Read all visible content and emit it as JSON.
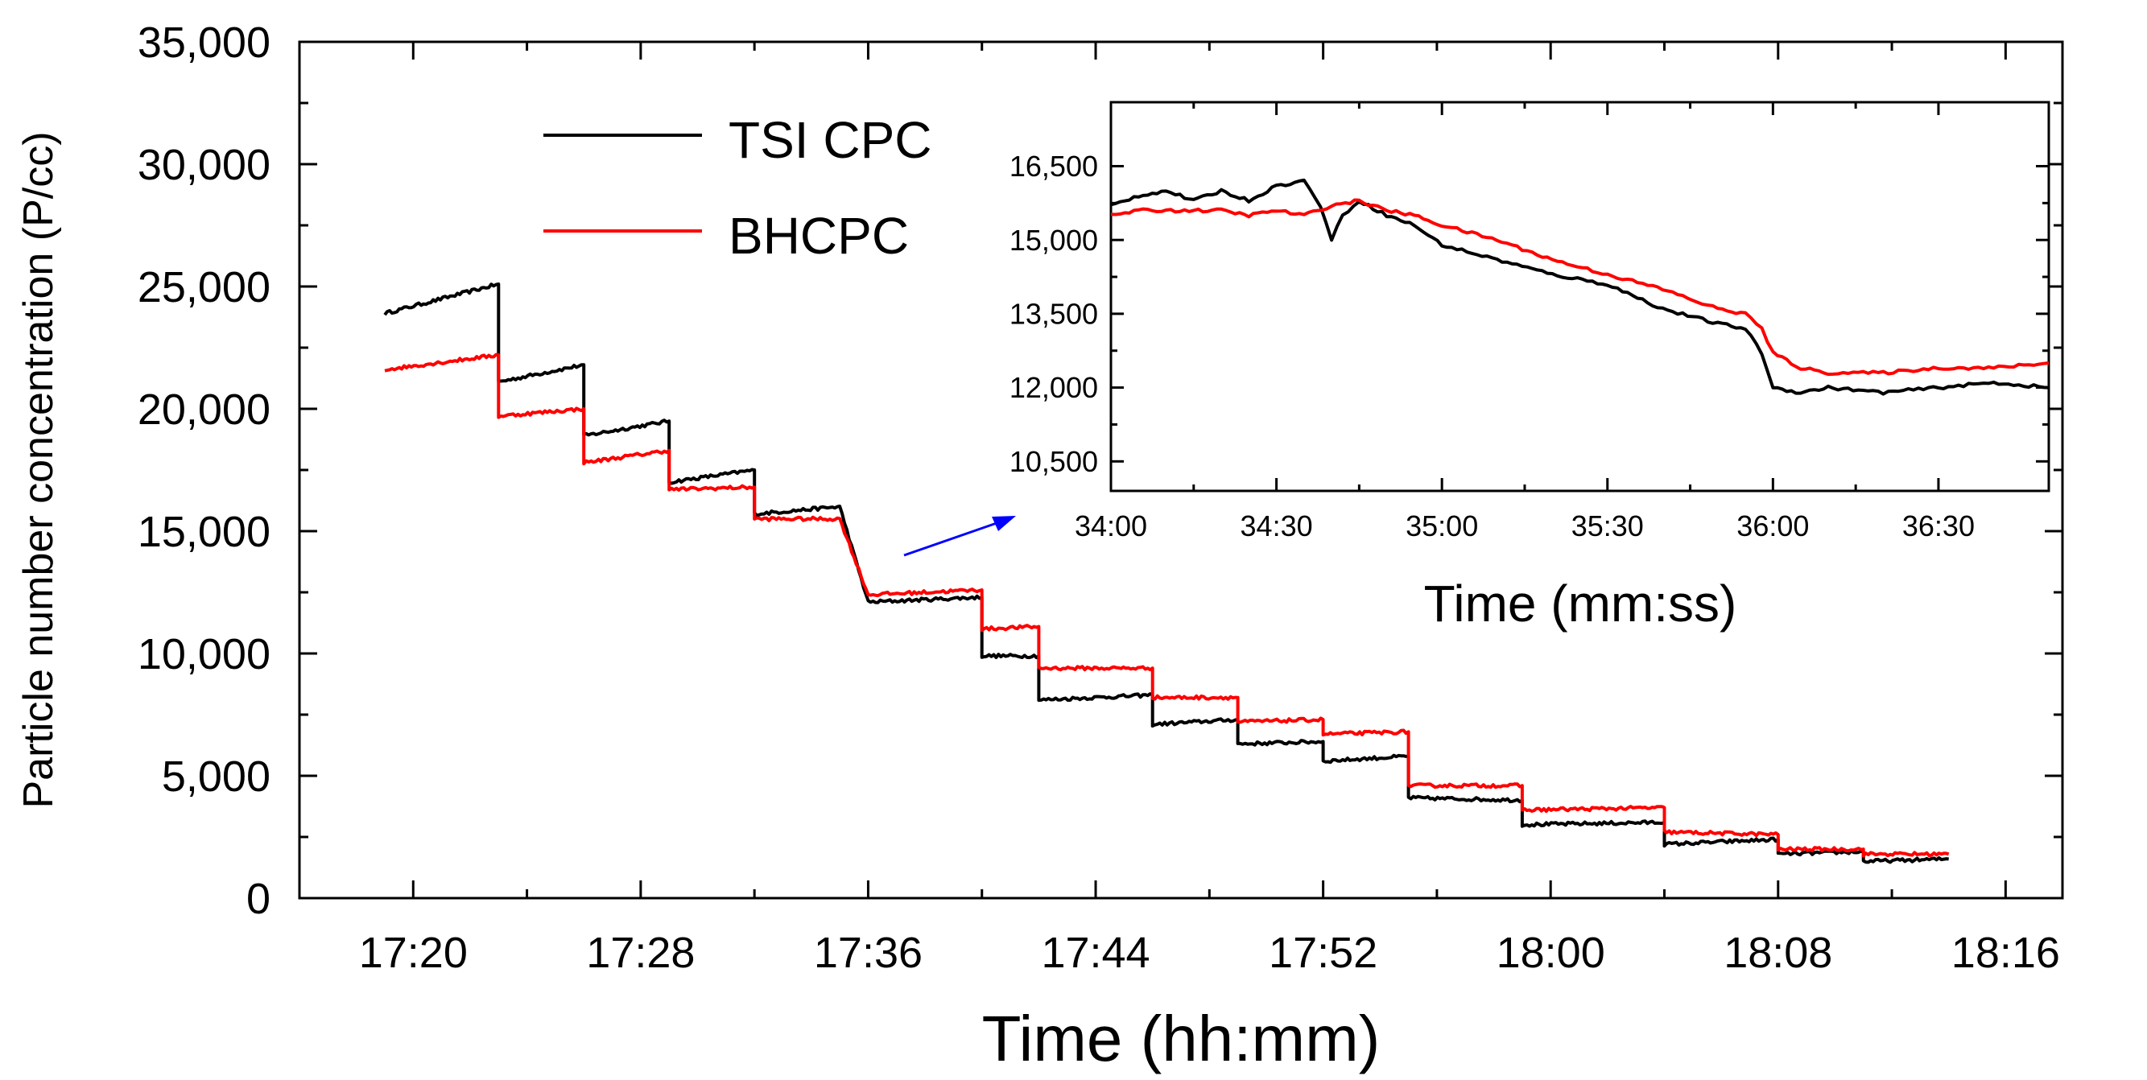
{
  "chart_data": [
    {
      "type": "line",
      "title": "",
      "xlabel": "Time (hh:mm)",
      "ylabel": "Particle number concentration (P/cc)",
      "xlim": [
        "17:16",
        "18:18"
      ],
      "ylim": [
        0,
        35000
      ],
      "x_ticks": [
        "17:20",
        "17:28",
        "17:36",
        "17:44",
        "17:52",
        "18:00",
        "18:08",
        "18:16"
      ],
      "y_ticks": [
        "0",
        "5,000",
        "10,000",
        "15,000",
        "20,000",
        "25,000",
        "30,000",
        "35,000"
      ],
      "grid": false,
      "legend_position": "top-left",
      "legend": [
        "TSI CPC",
        "BHCPC"
      ],
      "colors": {
        "TSI CPC": "#000000",
        "BHCPC": "#ff0000",
        "arrow": "#0000ff"
      },
      "series": [
        {
          "name": "TSI CPC",
          "color": "#000000",
          "x": [
            "17:19",
            "17:23",
            "17:23",
            "17:26",
            "17:26",
            "17:29",
            "17:29",
            "17:32",
            "17:32",
            "17:35",
            "17:36",
            "17:40",
            "17:40",
            "17:42",
            "17:42",
            "17:46",
            "17:46",
            "17:49",
            "17:49",
            "17:52",
            "17:52",
            "17:55",
            "17:55",
            "17:59",
            "17:59",
            "18:04",
            "18:04",
            "18:08",
            "18:08",
            "18:11",
            "18:11",
            "18:14"
          ],
          "y": [
            23900,
            25100,
            21100,
            21800,
            18900,
            19500,
            17000,
            17500,
            15700,
            16000,
            12100,
            12300,
            9900,
            9900,
            8100,
            8300,
            7100,
            7300,
            6300,
            6400,
            5600,
            5800,
            4100,
            4000,
            3000,
            3100,
            2200,
            2400,
            1800,
            1900,
            1500,
            1600
          ]
        },
        {
          "name": "BHCPC",
          "color": "#ff0000",
          "x": [
            "17:19",
            "17:23",
            "17:23",
            "17:26",
            "17:26",
            "17:29",
            "17:29",
            "17:32",
            "17:32",
            "17:35",
            "17:36",
            "17:40",
            "17:40",
            "17:42",
            "17:42",
            "17:46",
            "17:46",
            "17:49",
            "17:49",
            "17:52",
            "17:52",
            "17:55",
            "17:55",
            "17:59",
            "17:59",
            "18:04",
            "18:04",
            "18:08",
            "18:08",
            "18:11",
            "18:11",
            "18:14"
          ],
          "y": [
            21600,
            22200,
            19700,
            20000,
            17800,
            18300,
            16700,
            16800,
            15500,
            15500,
            12400,
            12600,
            11000,
            11100,
            9400,
            9400,
            8200,
            8200,
            7200,
            7300,
            6700,
            6800,
            4600,
            4600,
            3600,
            3700,
            2700,
            2600,
            2000,
            2000,
            1800,
            1800
          ]
        }
      ]
    },
    {
      "type": "line",
      "title": "",
      "xlabel": "Time (mm:ss)",
      "ylabel": "",
      "xlim": [
        "34:00",
        "36:50"
      ],
      "ylim": [
        9900,
        17800
      ],
      "x_ticks": [
        "34:00",
        "34:30",
        "35:00",
        "35:30",
        "36:00",
        "36:30"
      ],
      "y_ticks": [
        "10,500",
        "12,000",
        "13,500",
        "15,000",
        "16,500"
      ],
      "grid": false,
      "series": [
        {
          "name": "TSI CPC",
          "color": "#000000",
          "x": [
            "34:00",
            "34:05",
            "34:10",
            "34:15",
            "34:20",
            "34:25",
            "34:30",
            "34:35",
            "34:38",
            "34:40",
            "34:42",
            "34:45",
            "34:50",
            "34:55",
            "35:00",
            "35:10",
            "35:20",
            "35:30",
            "35:40",
            "35:50",
            "35:55",
            "35:58",
            "36:00",
            "36:05",
            "36:10",
            "36:20",
            "36:30",
            "36:40",
            "36:50"
          ],
          "y": [
            15700,
            15900,
            16000,
            15800,
            16000,
            15800,
            16100,
            16200,
            15700,
            15000,
            15500,
            15800,
            15500,
            15300,
            14900,
            14600,
            14300,
            14100,
            13600,
            13300,
            13200,
            12700,
            12000,
            11900,
            12000,
            11900,
            12000,
            12100,
            12000
          ]
        },
        {
          "name": "BHCPC",
          "color": "#ff0000",
          "x": [
            "34:00",
            "34:05",
            "34:10",
            "34:15",
            "34:20",
            "34:25",
            "34:30",
            "34:35",
            "34:40",
            "34:45",
            "34:50",
            "34:55",
            "35:00",
            "35:10",
            "35:20",
            "35:30",
            "35:40",
            "35:50",
            "35:55",
            "35:58",
            "36:00",
            "36:05",
            "36:10",
            "36:20",
            "36:30",
            "36:40",
            "36:50"
          ],
          "y": [
            15500,
            15600,
            15600,
            15600,
            15600,
            15500,
            15600,
            15500,
            15700,
            15800,
            15600,
            15500,
            15300,
            15000,
            14600,
            14300,
            14000,
            13600,
            13500,
            13200,
            12700,
            12400,
            12300,
            12300,
            12400,
            12400,
            12500
          ]
        }
      ]
    }
  ]
}
